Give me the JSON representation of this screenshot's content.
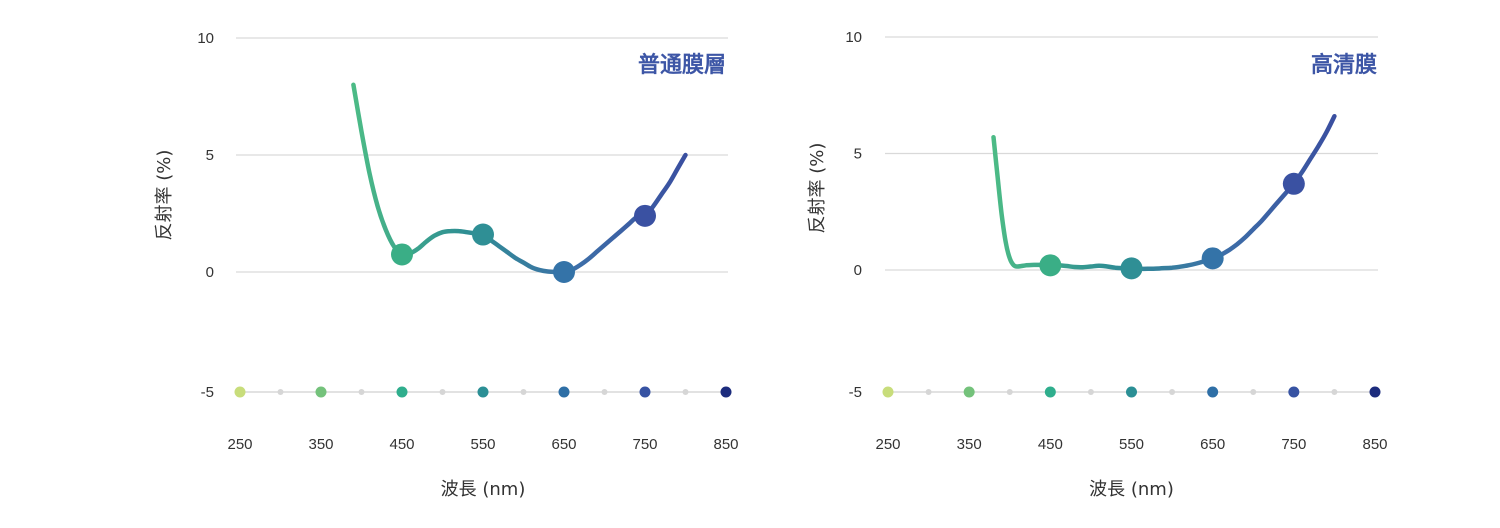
{
  "colors": {
    "title": "#3d56a6",
    "grid": "#d9d9d9",
    "gradient": [
      "#4cbb86",
      "#2f8f93",
      "#3d6fa8",
      "#3a4fa0"
    ],
    "wavelength_dots": [
      "#c8dd7b",
      "#74c27b",
      "#2fae8d",
      "#2b8f95",
      "#2e6fa6",
      "#3753a3",
      "#1c2c7d"
    ],
    "minor_dot": "#d6d6d6"
  },
  "chart_data": [
    {
      "type": "line",
      "title": "普通膜層",
      "xlabel": "波長 (nm)",
      "ylabel": "反射率 (%)",
      "xlim": [
        250,
        850
      ],
      "ylim": [
        -5,
        10
      ],
      "xticks": [
        "250",
        "350",
        "450",
        "550",
        "650",
        "750",
        "850"
      ],
      "yticks": [
        "10",
        "5",
        "0",
        "-5"
      ],
      "grid": true,
      "series": [
        {
          "x": [
            390,
            400,
            410,
            420,
            430,
            440,
            450,
            460,
            470,
            480,
            490,
            500,
            510,
            520,
            530,
            540,
            550,
            560,
            570,
            580,
            590,
            600,
            610,
            620,
            630,
            640,
            650,
            660,
            670,
            680,
            690,
            700,
            710,
            720,
            730,
            740,
            750,
            760,
            770,
            780,
            790,
            800
          ],
          "y": [
            8.0,
            6.0,
            4.2,
            2.8,
            1.8,
            1.1,
            0.75,
            0.8,
            1.0,
            1.3,
            1.55,
            1.7,
            1.75,
            1.75,
            1.7,
            1.65,
            1.6,
            1.35,
            1.1,
            0.85,
            0.6,
            0.4,
            0.2,
            0.08,
            0.02,
            0.0,
            0.0,
            0.1,
            0.3,
            0.55,
            0.85,
            1.15,
            1.45,
            1.75,
            2.05,
            2.35,
            2.4,
            2.8,
            3.3,
            3.8,
            4.4,
            5.0
          ]
        }
      ],
      "markers": [
        {
          "x": 450,
          "y": 0.75
        },
        {
          "x": 550,
          "y": 1.6
        },
        {
          "x": 650,
          "y": 0.0
        },
        {
          "x": 750,
          "y": 2.4
        }
      ],
      "wavelength_dots": [
        250,
        350,
        450,
        550,
        650,
        750,
        850
      ]
    },
    {
      "type": "line",
      "title": "高清膜",
      "xlabel": "波長 (nm)",
      "ylabel": "反射率 (%)",
      "xlim": [
        250,
        850
      ],
      "ylim": [
        -5,
        10
      ],
      "xticks": [
        "250",
        "350",
        "450",
        "550",
        "650",
        "750",
        "850"
      ],
      "yticks": [
        "10",
        "5",
        "0",
        "-5"
      ],
      "grid": true,
      "series": [
        {
          "x": [
            380,
            385,
            390,
            395,
            400,
            405,
            410,
            420,
            430,
            440,
            450,
            460,
            470,
            480,
            490,
            500,
            510,
            520,
            530,
            540,
            550,
            560,
            570,
            580,
            590,
            600,
            610,
            620,
            630,
            640,
            650,
            660,
            670,
            680,
            690,
            700,
            710,
            720,
            730,
            740,
            750,
            760,
            770,
            780,
            790,
            800
          ],
          "y": [
            5.7,
            4.0,
            2.4,
            1.2,
            0.5,
            0.2,
            0.15,
            0.2,
            0.22,
            0.22,
            0.2,
            0.2,
            0.17,
            0.13,
            0.12,
            0.15,
            0.18,
            0.15,
            0.1,
            0.08,
            0.07,
            0.05,
            0.05,
            0.06,
            0.08,
            0.1,
            0.14,
            0.2,
            0.28,
            0.38,
            0.5,
            0.65,
            0.85,
            1.1,
            1.4,
            1.75,
            2.1,
            2.5,
            2.9,
            3.3,
            3.7,
            4.2,
            4.75,
            5.3,
            5.9,
            6.6
          ]
        }
      ],
      "markers": [
        {
          "x": 450,
          "y": 0.2
        },
        {
          "x": 550,
          "y": 0.07
        },
        {
          "x": 650,
          "y": 0.5
        },
        {
          "x": 750,
          "y": 3.7
        }
      ],
      "wavelength_dots": [
        250,
        350,
        450,
        550,
        650,
        750,
        850
      ]
    }
  ]
}
